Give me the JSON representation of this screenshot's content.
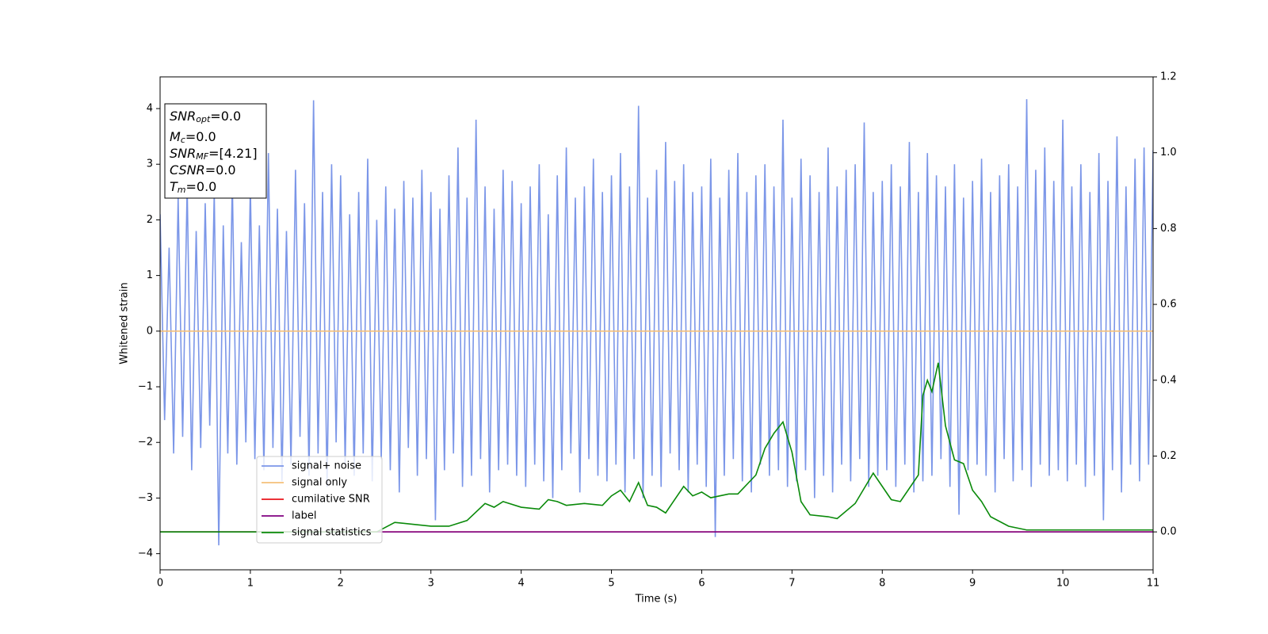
{
  "chart_data": {
    "type": "line",
    "xlabel": "Time (s)",
    "ylabel": "Whitened strain",
    "xlim": [
      0,
      11
    ],
    "xticks": [
      0,
      1,
      2,
      3,
      4,
      5,
      6,
      7,
      8,
      9,
      10,
      11
    ],
    "ylim": [
      -4.29,
      4.57
    ],
    "yticks": [
      {
        "value": -4,
        "label": "−4"
      },
      {
        "value": -3,
        "label": "−3"
      },
      {
        "value": -2,
        "label": "−2"
      },
      {
        "value": -1,
        "label": "−1"
      },
      0,
      1,
      2,
      3,
      4
    ],
    "y2lim": [
      -0.1,
      1.2
    ],
    "y2ticks": [
      {
        "value": 0,
        "label": "0.0"
      },
      0.2,
      0.4,
      0.6,
      0.8,
      {
        "value": 1,
        "label": "1.0"
      },
      1.2
    ],
    "legend_loc": "lower left",
    "annotation": [
      {
        "main": "SNR",
        "sub": "opt",
        "rest": "=0.0"
      },
      {
        "main": "M",
        "sub": "c",
        "rest": "=0.0"
      },
      {
        "main": "SNR",
        "sub": "MF",
        "rest": "=[4.21]"
      },
      {
        "main": "CSNR",
        "rest": "=0.0"
      },
      {
        "main": "T",
        "sub": "m",
        "rest": "=0.0"
      }
    ],
    "series": [
      {
        "name": "signal+ noise",
        "color": "#7b96e8",
        "x": [
          0,
          0.05,
          0.1,
          0.15,
          0.2,
          0.25,
          0.3,
          0.35,
          0.4,
          0.45,
          0.5,
          0.55,
          0.6,
          0.65,
          0.7,
          0.75,
          0.8,
          0.85,
          0.9,
          0.95,
          1,
          1.05,
          1.1,
          1.15,
          1.2,
          1.25,
          1.3,
          1.35,
          1.4,
          1.45,
          1.5,
          1.55,
          1.6,
          1.65,
          1.7,
          1.75,
          1.8,
          1.85,
          1.9,
          1.95,
          2,
          2.05,
          2.1,
          2.15,
          2.2,
          2.25,
          2.3,
          2.35,
          2.4,
          2.45,
          2.5,
          2.55,
          2.6,
          2.65,
          2.7,
          2.75,
          2.8,
          2.85,
          2.9,
          2.95,
          3,
          3.05,
          3.1,
          3.15,
          3.2,
          3.25,
          3.3,
          3.35,
          3.4,
          3.45,
          3.5,
          3.55,
          3.6,
          3.65,
          3.7,
          3.75,
          3.8,
          3.85,
          3.9,
          3.95,
          4,
          4.05,
          4.1,
          4.15,
          4.2,
          4.25,
          4.3,
          4.35,
          4.4,
          4.45,
          4.5,
          4.55,
          4.6,
          4.65,
          4.7,
          4.75,
          4.8,
          4.85,
          4.9,
          4.95,
          5,
          5.05,
          5.1,
          5.15,
          5.2,
          5.25,
          5.3,
          5.35,
          5.4,
          5.45,
          5.5,
          5.55,
          5.6,
          5.65,
          5.7,
          5.75,
          5.8,
          5.85,
          5.9,
          5.95,
          6,
          6.05,
          6.1,
          6.15,
          6.2,
          6.25,
          6.3,
          6.35,
          6.4,
          6.45,
          6.5,
          6.55,
          6.6,
          6.65,
          6.7,
          6.75,
          6.8,
          6.85,
          6.9,
          6.95,
          7,
          7.05,
          7.1,
          7.15,
          7.2,
          7.25,
          7.3,
          7.35,
          7.4,
          7.45,
          7.5,
          7.55,
          7.6,
          7.65,
          7.7,
          7.75,
          7.8,
          7.85,
          7.9,
          7.95,
          8,
          8.05,
          8.1,
          8.15,
          8.2,
          8.25,
          8.3,
          8.35,
          8.4,
          8.45,
          8.5,
          8.55,
          8.6,
          8.65,
          8.7,
          8.75,
          8.8,
          8.85,
          8.9,
          8.95,
          9,
          9.05,
          9.1,
          9.15,
          9.2,
          9.25,
          9.3,
          9.35,
          9.4,
          9.45,
          9.5,
          9.55,
          9.6,
          9.65,
          9.7,
          9.75,
          9.8,
          9.85,
          9.9,
          9.95,
          10,
          10.05,
          10.1,
          10.15,
          10.2,
          10.25,
          10.3,
          10.35,
          10.4,
          10.45,
          10.5,
          10.55,
          10.6,
          10.65,
          10.7,
          10.75,
          10.8,
          10.85,
          10.9,
          10.95,
          11
        ],
        "values": [
          2.1,
          -1.6,
          1.5,
          -2.2,
          2.4,
          -1.9,
          2.6,
          -2.5,
          1.8,
          -2.1,
          2.3,
          -1.7,
          2.5,
          -3.85,
          1.9,
          -2.2,
          2.7,
          -2.4,
          1.6,
          -2.0,
          2.6,
          -2.3,
          1.9,
          -2.5,
          3.2,
          -2.1,
          2.2,
          -2.7,
          1.8,
          -2.4,
          2.9,
          -1.9,
          2.3,
          -2.6,
          4.15,
          -2.2,
          2.5,
          -2.8,
          3.0,
          -2.0,
          2.8,
          -2.4,
          2.1,
          -2.6,
          2.5,
          -2.2,
          3.1,
          -2.7,
          2.0,
          -2.3,
          2.6,
          -2.5,
          2.2,
          -2.9,
          2.7,
          -2.1,
          2.4,
          -2.6,
          2.9,
          -2.3,
          2.5,
          -3.4,
          2.2,
          -2.5,
          2.8,
          -2.2,
          3.3,
          -2.8,
          2.4,
          -2.6,
          3.8,
          -2.3,
          2.6,
          -2.9,
          2.2,
          -2.5,
          2.9,
          -2.4,
          2.7,
          -2.6,
          2.3,
          -2.8,
          2.6,
          -2.4,
          3.0,
          -2.7,
          2.1,
          -3.0,
          2.8,
          -2.5,
          3.3,
          -2.2,
          2.4,
          -2.9,
          2.6,
          -2.3,
          3.1,
          -2.6,
          2.5,
          -2.7,
          2.8,
          -2.4,
          3.2,
          -2.9,
          2.6,
          -2.3,
          4.05,
          -3.0,
          2.4,
          -2.6,
          2.9,
          -2.8,
          3.4,
          -2.2,
          2.7,
          -2.5,
          3.0,
          -2.9,
          2.5,
          -2.4,
          2.6,
          -2.8,
          3.1,
          -3.7,
          2.4,
          -2.6,
          2.9,
          -2.3,
          3.2,
          -2.7,
          2.5,
          -2.9,
          2.8,
          -2.4,
          3.0,
          -2.6,
          2.6,
          -2.5,
          3.8,
          -2.8,
          2.4,
          -2.7,
          3.1,
          -2.5,
          2.8,
          -3.0,
          2.5,
          -2.6,
          3.3,
          -2.9,
          2.6,
          -2.4,
          2.9,
          -2.7,
          3.0,
          -2.3,
          3.75,
          -2.8,
          2.5,
          -2.6,
          2.7,
          -2.5,
          3.0,
          -2.8,
          2.6,
          -2.4,
          3.4,
          -2.9,
          2.5,
          -2.7,
          3.2,
          -2.6,
          2.8,
          -2.3,
          2.6,
          -2.8,
          3.0,
          -3.3,
          2.4,
          -2.5,
          2.7,
          -2.4,
          3.1,
          -2.6,
          2.5,
          -2.9,
          2.8,
          -2.3,
          3.0,
          -2.7,
          2.6,
          -2.5,
          4.17,
          -2.8,
          2.9,
          -2.4,
          3.3,
          -2.6,
          2.7,
          -2.5,
          3.8,
          -2.7,
          2.6,
          -2.4,
          3.0,
          -2.8,
          2.5,
          -2.6,
          3.2,
          -3.4,
          2.7,
          -2.5,
          3.5,
          -2.9,
          2.6,
          -2.4,
          3.1,
          -2.7,
          3.3,
          -2.4,
          3.25
        ]
      },
      {
        "name": "signal only",
        "color": "#f5c07a",
        "x": [
          0,
          11
        ],
        "values": [
          0,
          0
        ]
      },
      {
        "name": "cumilative SNR",
        "color": "#e8141c",
        "axis": "y2",
        "x": [
          0,
          11
        ],
        "values": [
          0,
          0
        ]
      },
      {
        "name": "label",
        "color": "#800080",
        "axis": "y2",
        "x": [
          0,
          11
        ],
        "values": [
          0,
          0
        ]
      },
      {
        "name": "signal statistics",
        "color": "#0a8a0a",
        "axis": "y2",
        "x": [
          0,
          2.4,
          2.6,
          2.8,
          3.0,
          3.2,
          3.4,
          3.6,
          3.7,
          3.8,
          4.0,
          4.2,
          4.3,
          4.4,
          4.5,
          4.7,
          4.9,
          5.0,
          5.1,
          5.2,
          5.3,
          5.4,
          5.5,
          5.6,
          5.8,
          5.9,
          6.0,
          6.1,
          6.3,
          6.4,
          6.6,
          6.7,
          6.8,
          6.9,
          7.0,
          7.1,
          7.2,
          7.4,
          7.5,
          7.7,
          7.9,
          8.0,
          8.1,
          8.2,
          8.4,
          8.45,
          8.5,
          8.55,
          8.62,
          8.7,
          8.8,
          8.9,
          9.0,
          9.1,
          9.2,
          9.4,
          9.6,
          10.0,
          11.0
        ],
        "values": [
          0,
          0,
          0.025,
          0.02,
          0.015,
          0.015,
          0.03,
          0.075,
          0.065,
          0.08,
          0.065,
          0.06,
          0.085,
          0.08,
          0.07,
          0.075,
          0.07,
          0.095,
          0.11,
          0.08,
          0.13,
          0.07,
          0.065,
          0.05,
          0.12,
          0.095,
          0.105,
          0.09,
          0.1,
          0.1,
          0.15,
          0.22,
          0.26,
          0.29,
          0.21,
          0.08,
          0.045,
          0.04,
          0.035,
          0.075,
          0.155,
          0.12,
          0.085,
          0.08,
          0.15,
          0.36,
          0.4,
          0.37,
          0.446,
          0.28,
          0.19,
          0.18,
          0.11,
          0.08,
          0.04,
          0.015,
          0.005,
          0.005,
          0.005
        ]
      }
    ]
  }
}
